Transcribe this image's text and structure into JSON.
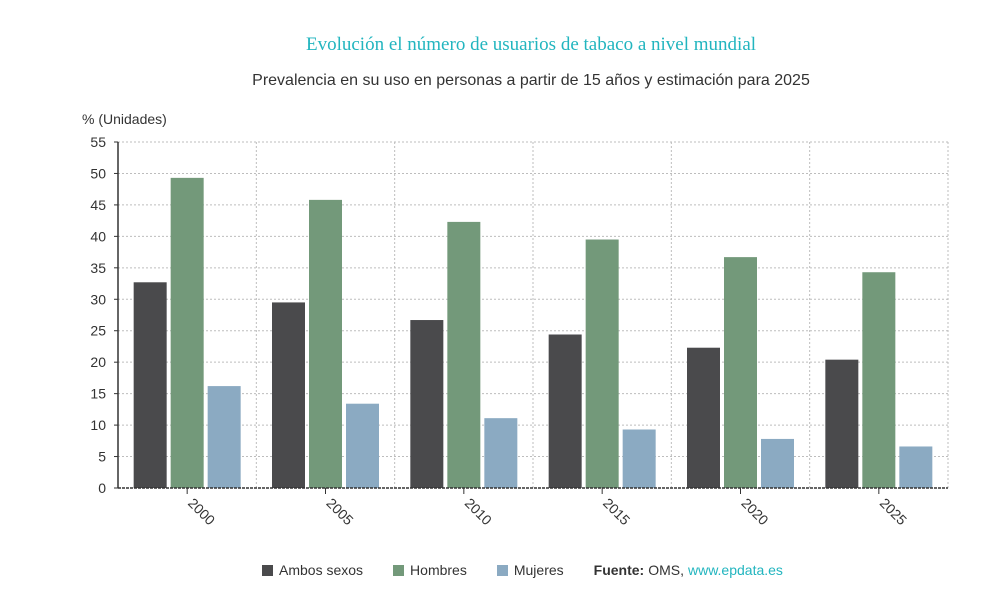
{
  "chart_data": {
    "type": "bar",
    "title": "Evolución el número de usuarios de tabaco a nivel mundial",
    "subtitle": "Prevalencia en su uso en personas a partir de 15 años y estimación para 2025",
    "ylabel": "% (Unidades)",
    "xlabel": "",
    "categories": [
      "2000",
      "2005",
      "2010",
      "2015",
      "2020",
      "2025"
    ],
    "series": [
      {
        "name": "Ambos sexos",
        "color": "#4a4a4c",
        "values": [
          32.7,
          29.5,
          26.7,
          24.4,
          22.3,
          20.4
        ]
      },
      {
        "name": "Hombres",
        "color": "#73997a",
        "values": [
          49.3,
          45.8,
          42.3,
          39.5,
          36.7,
          34.3
        ]
      },
      {
        "name": "Mujeres",
        "color": "#8baac2",
        "values": [
          16.2,
          13.4,
          11.1,
          9.3,
          7.8,
          6.6
        ]
      }
    ],
    "ylim": [
      0,
      55
    ],
    "yticks": [
      0,
      5,
      10,
      15,
      20,
      25,
      30,
      35,
      40,
      45,
      50,
      55
    ],
    "grid": true,
    "legend_position": "bottom"
  },
  "legend": {
    "source_label": "Fuente:",
    "source_name": "OMS,",
    "source_link": "www.epdata.es"
  }
}
